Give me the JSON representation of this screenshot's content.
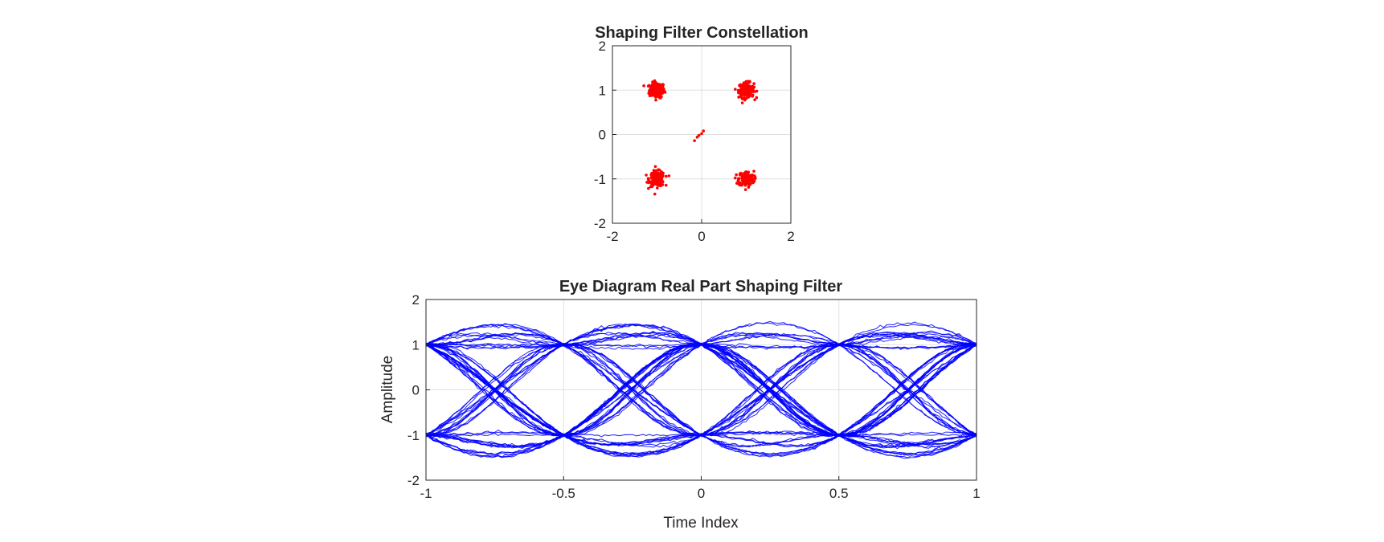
{
  "chart_data": [
    {
      "type": "scatter",
      "title": "Shaping Filter Constellation",
      "xlabel": "",
      "ylabel": "",
      "xlim": [
        -2,
        2
      ],
      "ylim": [
        -2,
        2
      ],
      "xticks": [
        -2,
        0,
        2
      ],
      "yticks": [
        -2,
        -1,
        0,
        1,
        2
      ],
      "xtick_labels": [
        "-2",
        "0",
        "2"
      ],
      "ytick_labels": [
        "-2",
        "-1",
        "0",
        "1",
        "2"
      ],
      "grid": true,
      "legend": "none",
      "color": "#ff0000",
      "clusters": [
        {
          "center": [
            -1,
            1
          ],
          "spread": 0.1,
          "count": 180
        },
        {
          "center": [
            1,
            1
          ],
          "spread": 0.1,
          "count": 180
        },
        {
          "center": [
            -1,
            -1
          ],
          "spread": 0.1,
          "count": 180
        },
        {
          "center": [
            1,
            -1
          ],
          "spread": 0.1,
          "count": 180
        }
      ],
      "transient_points": [
        [
          -0.16,
          -0.14
        ],
        [
          -0.1,
          -0.06
        ],
        [
          -0.06,
          -0.02
        ],
        [
          0.0,
          0.02
        ],
        [
          0.04,
          0.08
        ]
      ]
    },
    {
      "type": "line",
      "title": "Eye Diagram Real Part Shaping Filter",
      "xlabel": "Time Index",
      "ylabel": "Amplitude",
      "xlim": [
        -1,
        1
      ],
      "ylim": [
        -2,
        2
      ],
      "xticks": [
        -1,
        -0.5,
        0,
        0.5,
        1
      ],
      "yticks": [
        -2,
        -1,
        0,
        1,
        2
      ],
      "xtick_labels": [
        "-1",
        "-0.5",
        "0",
        "0.5",
        "1"
      ],
      "ytick_labels": [
        "-2",
        "-1",
        "0",
        "1",
        "2"
      ],
      "grid": true,
      "legend": "none",
      "color": "#0000ff",
      "symbol_levels": [
        -1,
        1
      ],
      "symbol_period": 0.5,
      "peak_amplitude": 1.35,
      "trace_count": 70
    }
  ]
}
